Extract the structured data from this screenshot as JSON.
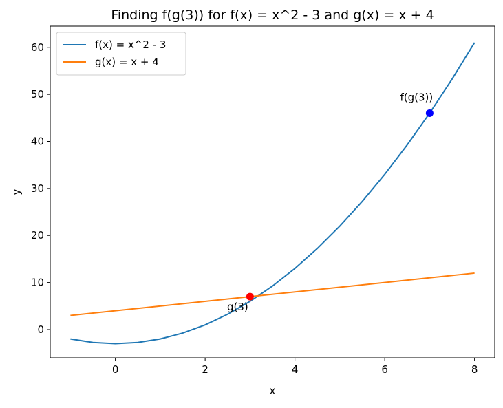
{
  "chart_data": {
    "type": "line",
    "title": "Finding f(g(3)) for f(x) = x^2 - 3 and g(x) = x + 4",
    "xlabel": "x",
    "ylabel": "y",
    "series": [
      {
        "name": "f(x) = x^2 - 3",
        "color": "#1f77b4",
        "x": [
          -1,
          -0.5,
          0,
          0.5,
          1,
          1.5,
          2,
          2.5,
          3,
          3.5,
          4,
          4.5,
          5,
          5.5,
          6,
          6.5,
          7,
          7.5,
          8
        ],
        "values": [
          -2,
          -2.75,
          -3,
          -2.75,
          -2,
          -0.75,
          1,
          3.25,
          6,
          9.25,
          13,
          17.25,
          22,
          27.25,
          33,
          39.25,
          46,
          53.25,
          61
        ]
      },
      {
        "name": "g(x) = x + 4",
        "color": "#ff7f0e",
        "x": [
          -1,
          8
        ],
        "values": [
          3,
          12
        ]
      }
    ],
    "points": [
      {
        "x": 3,
        "y": 7,
        "color": "red",
        "label": "g(3)"
      },
      {
        "x": 7,
        "y": 46,
        "color": "blue",
        "label": "f(g(3))"
      }
    ],
    "xlim": [
      -1.45,
      8.45
    ],
    "ylim": [
      -6,
      64.5
    ],
    "xticks": [
      0,
      2,
      4,
      6,
      8
    ],
    "yticks": [
      0,
      10,
      20,
      30,
      40,
      50,
      60
    ],
    "legend": "upper left"
  }
}
